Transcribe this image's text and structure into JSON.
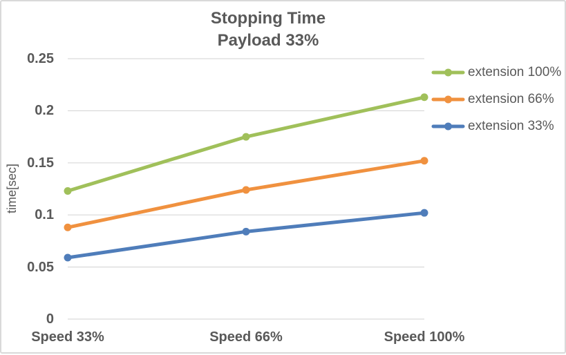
{
  "chart_data": {
    "type": "line",
    "title": "Stopping Time",
    "subtitle": "Payload 33%",
    "xlabel": "",
    "ylabel": "time[sec]",
    "categories": [
      "Speed 33%",
      "Speed 66%",
      "Speed 100%"
    ],
    "series": [
      {
        "name": "extension 100%",
        "color": "#A0C05A",
        "values": [
          0.123,
          0.175,
          0.213
        ]
      },
      {
        "name": "extension 66%",
        "color": "#F0913F",
        "values": [
          0.088,
          0.124,
          0.152
        ]
      },
      {
        "name": "extension 33%",
        "color": "#4F7DBA",
        "values": [
          0.059,
          0.084,
          0.102
        ]
      }
    ],
    "ylim": [
      0,
      0.25
    ],
    "yticks": [
      0,
      0.05,
      0.1,
      0.15,
      0.2,
      0.25
    ],
    "ytick_labels": [
      "0",
      "0.05",
      "0.1",
      "0.15",
      "0.2",
      "0.25"
    ],
    "grid": true,
    "legend_position": "right",
    "colors": {
      "text": "#595959",
      "gridline": "#D9D9D9",
      "frame_border": "#D9D9D9",
      "background": "#FFFFFF"
    }
  }
}
